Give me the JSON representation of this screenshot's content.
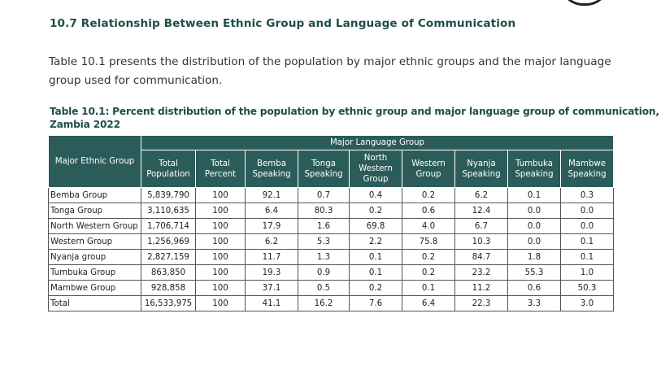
{
  "section_heading": "10.7 Relationship Between Ethnic Group and Language of Communication",
  "intro_text": "Table 10.1 presents the distribution of the population by major ethnic groups and the major language group used for communication.",
  "table_caption_line1": "Table 10.1: Percent distribution of the population by ethnic group and major language group of communication,",
  "table_caption_line2": "Zambia 2022",
  "table": {
    "row_header": "Major Ethnic Group",
    "group_header": "Major Language Group",
    "columns": [
      "Total Population",
      "Total Percent",
      "Bemba Speaking",
      "Tonga Speaking",
      "North Western Group",
      "Western Group",
      "Nyanja Speaking",
      "Tumbuka Speaking",
      "Mambwe Speaking"
    ],
    "rows": [
      [
        "Bemba Group",
        "5,839,790",
        "100",
        "92.1",
        "0.7",
        "0.4",
        "0.2",
        "6.2",
        "0.1",
        "0.3"
      ],
      [
        "Tonga Group",
        "3,110,635",
        "100",
        "6.4",
        "80.3",
        "0.2",
        "0.6",
        "12.4",
        "0.0",
        "0.0"
      ],
      [
        "North Western Group",
        "1,706,714",
        "100",
        "17.9",
        "1.6",
        "69.8",
        "4.0",
        "6.7",
        "0.0",
        "0.0"
      ],
      [
        "Western Group",
        "1,256,969",
        "100",
        "6.2",
        "5.3",
        "2.2",
        "75.8",
        "10.3",
        "0.0",
        "0.1"
      ],
      [
        "Nyanja group",
        "2,827,159",
        "100",
        "11.7",
        "1.3",
        "0.1",
        "0.2",
        "84.7",
        "1.8",
        "0.1"
      ],
      [
        "Tumbuka Group",
        "863,850",
        "100",
        "19.3",
        "0.9",
        "0.1",
        "0.2",
        "23.2",
        "55.3",
        "1.0"
      ],
      [
        "Mambwe Group",
        "928,858",
        "100",
        "37.1",
        "0.5",
        "0.2",
        "0.1",
        "11.2",
        "0.6",
        "50.3"
      ],
      [
        "Total",
        "16,533,975",
        "100",
        "41.1",
        "16.2",
        "7.6",
        "6.4",
        "22.3",
        "3.3",
        "3.0"
      ]
    ]
  }
}
